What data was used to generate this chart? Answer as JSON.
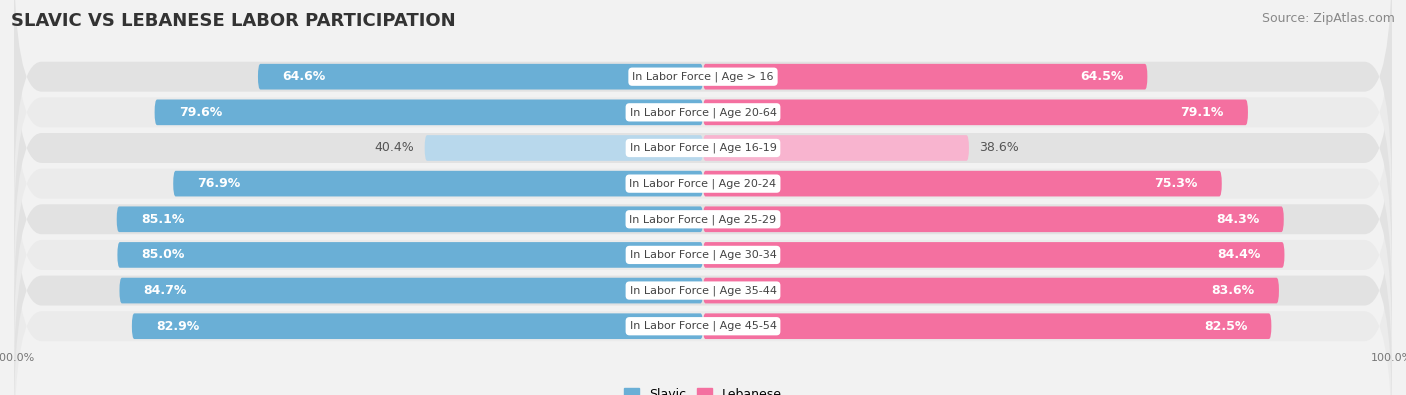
{
  "title": "SLAVIC VS LEBANESE LABOR PARTICIPATION",
  "source": "Source: ZipAtlas.com",
  "categories": [
    "In Labor Force | Age > 16",
    "In Labor Force | Age 20-64",
    "In Labor Force | Age 16-19",
    "In Labor Force | Age 20-24",
    "In Labor Force | Age 25-29",
    "In Labor Force | Age 30-34",
    "In Labor Force | Age 35-44",
    "In Labor Force | Age 45-54"
  ],
  "slavic_values": [
    64.6,
    79.6,
    40.4,
    76.9,
    85.1,
    85.0,
    84.7,
    82.9
  ],
  "lebanese_values": [
    64.5,
    79.1,
    38.6,
    75.3,
    84.3,
    84.4,
    83.6,
    82.5
  ],
  "slavic_color": "#6aafd6",
  "slavic_color_light": "#b8d8ec",
  "lebanese_color": "#f470a0",
  "lebanese_color_light": "#f8b4cf",
  "bg_color": "#f2f2f2",
  "row_bg_odd": "#e8e8e8",
  "row_bg_even": "#f0f0f0",
  "max_value": 100.0,
  "bar_height": 0.72,
  "title_fontsize": 13,
  "source_fontsize": 9,
  "value_fontsize": 9,
  "category_fontsize": 8,
  "legend_fontsize": 9,
  "axis_label_fontsize": 8
}
